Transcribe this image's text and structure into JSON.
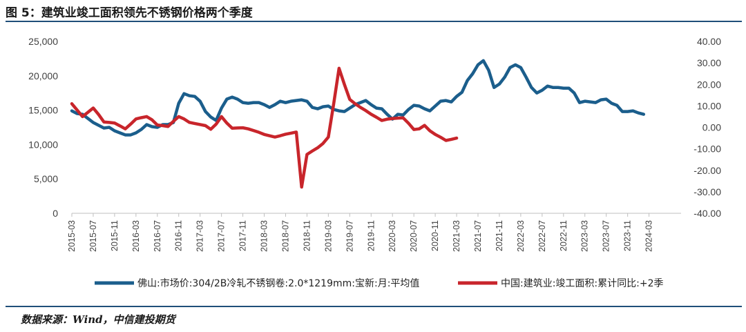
{
  "title": "图 5：建筑业竣工面积领先不锈钢价格两个季度",
  "source": "数据来源：Wind，中信建投期货",
  "chart_data": {
    "type": "line",
    "left_axis": {
      "ylim": [
        0,
        25000
      ],
      "ticks": [
        0,
        5000,
        10000,
        15000,
        20000,
        25000
      ],
      "tick_labels": [
        "0",
        "5,000",
        "10,000",
        "15,000",
        "20,000",
        "25,000"
      ]
    },
    "right_axis": {
      "ylim": [
        -40,
        40
      ],
      "ticks": [
        -40,
        -30,
        -20,
        -10,
        0,
        10,
        20,
        30,
        40
      ],
      "tick_labels": [
        "-40.00",
        "-30.00",
        "-20.00",
        "-10.00",
        "0.00",
        "10.00",
        "20.00",
        "30.00",
        "40.00"
      ]
    },
    "x_tick_labels": [
      "2015-03",
      "2015-07",
      "2015-11",
      "2016-03",
      "2016-07",
      "2016-11",
      "2017-03",
      "2017-07",
      "2017-11",
      "2018-03",
      "2018-07",
      "2018-11",
      "2019-03",
      "2019-07",
      "2019-11",
      "2020-03",
      "2020-07",
      "2020-11",
      "2021-03",
      "2021-07",
      "2021-11",
      "2022-03",
      "2022-07",
      "2022-11",
      "2023-03",
      "2023-07",
      "2023-11",
      "2024-03"
    ],
    "grid": false,
    "legend_placement": "bottom",
    "series": [
      {
        "name": "佛山:市场价:304/2B冷轧不锈钢卷:2.0*1219mm:宝新:月:平均值",
        "axis": "left",
        "color": "#1b5e8c",
        "start": "2015-03",
        "values": [
          14900,
          14500,
          14400,
          13800,
          13200,
          12800,
          12400,
          12500,
          12000,
          11700,
          11400,
          11400,
          11700,
          12200,
          12900,
          12600,
          12500,
          12900,
          12900,
          13200,
          16000,
          17400,
          17100,
          17000,
          16300,
          14800,
          14000,
          13500,
          15300,
          16600,
          16900,
          16600,
          16100,
          16000,
          16100,
          16100,
          15800,
          15400,
          15800,
          16300,
          16100,
          16300,
          16400,
          16500,
          16300,
          15400,
          15200,
          15500,
          15600,
          15100,
          14900,
          14800,
          15300,
          15800,
          16100,
          16400,
          15800,
          15300,
          15200,
          14400,
          13700,
          14400,
          14300,
          15100,
          15700,
          15600,
          15200,
          14900,
          15600,
          16300,
          16400,
          16200,
          17000,
          17600,
          19300,
          20300,
          21600,
          22200,
          20800,
          18300,
          18800,
          19800,
          21200,
          21600,
          21200,
          19800,
          18300,
          17500,
          17900,
          18500,
          18300,
          18300,
          18200,
          18200,
          17500,
          16100,
          16300,
          16200,
          16100,
          16500,
          16600,
          16000,
          15700,
          14800,
          14800,
          14900,
          14600,
          14400
        ]
      },
      {
        "name": "中国:建筑业:竣工面积:累计同比:+2季",
        "axis": "right",
        "color": "#c8252b",
        "start": "2015-03",
        "values": [
          11.0,
          8.0,
          5.0,
          7.0,
          9.0,
          6.0,
          2.5,
          2.3,
          2.0,
          0.7,
          -0.7,
          1.5,
          3.9,
          4.5,
          5.0,
          3.5,
          1.1,
          0.8,
          0.4,
          2.8,
          5.0,
          3.9,
          2.3,
          1.8,
          1.3,
          0.8,
          -0.9,
          1.5,
          5.0,
          2.0,
          -0.4,
          -0.3,
          -0.2,
          -0.7,
          -1.5,
          -2.3,
          -3.3,
          -3.9,
          -4.5,
          -3.9,
          -3.2,
          -2.7,
          -2.2,
          -27.8,
          -12.6,
          -11.0,
          -9.5,
          -7.5,
          -4.5,
          11.0,
          27.5,
          20.0,
          13.0,
          11.0,
          9.3,
          7.8,
          6.1,
          4.7,
          3.2,
          3.8,
          4.1,
          4.3,
          4.4,
          1.9,
          -1.0,
          -0.7,
          0.9,
          -1.6,
          -3.3,
          -4.6,
          -6.1,
          -5.6,
          -5.0
        ]
      }
    ]
  }
}
